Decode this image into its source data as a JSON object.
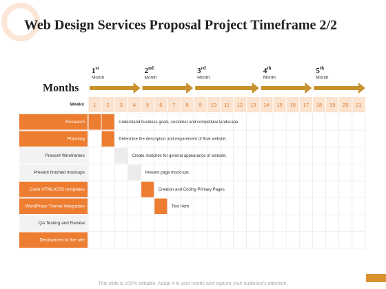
{
  "title": "Web Design Services Proposal Project Timeframe 2/2",
  "months_label": "Months",
  "months": [
    {
      "number": 1,
      "suffix": "st",
      "label": "Month",
      "start_week": 1
    },
    {
      "number": 2,
      "suffix": "nd",
      "label": "Month",
      "start_week": 5
    },
    {
      "number": 3,
      "suffix": "rd",
      "label": "Month",
      "start_week": 9
    },
    {
      "number": 4,
      "suffix": "th",
      "label": "Month",
      "start_week": 14
    },
    {
      "number": 5,
      "suffix": "th",
      "label": "Month",
      "start_week": 18
    }
  ],
  "weeks_label": "Weeks",
  "weeks": [
    1,
    2,
    3,
    4,
    5,
    6,
    7,
    8,
    9,
    10,
    11,
    12,
    13,
    14,
    15,
    16,
    17,
    18,
    19,
    20,
    21
  ],
  "tasks": [
    {
      "name": "Research",
      "highlight": true,
      "start": 1,
      "end": 2,
      "description": "Understand  business goals, customer and competitive landscape"
    },
    {
      "name": "Planning",
      "highlight": true,
      "start": 2,
      "end": 2,
      "description": "Determine the description  and requirement of final website."
    },
    {
      "name": "Present Wireframes",
      "highlight": false,
      "start": 3,
      "end": 3,
      "description": "Create sketches for general appearance of website."
    },
    {
      "name": "Present finished mockups",
      "highlight": false,
      "start": 4,
      "end": 4,
      "description": "Present page mock-ups."
    },
    {
      "name": "Code HTML/CSS templates",
      "highlight": true,
      "start": 5,
      "end": 5,
      "description": "Creation and Coding Primary Pages"
    },
    {
      "name": "WordPress Theme Integration",
      "highlight": true,
      "start": 6,
      "end": 6,
      "description": "Text Here"
    },
    {
      "name": "QA Testing and Review",
      "highlight": false
    },
    {
      "name": "Deployment to live site",
      "highlight": true
    }
  ],
  "footer": "This slide is 100% editable. Adapt it to your needs and capture your audience's attention."
}
